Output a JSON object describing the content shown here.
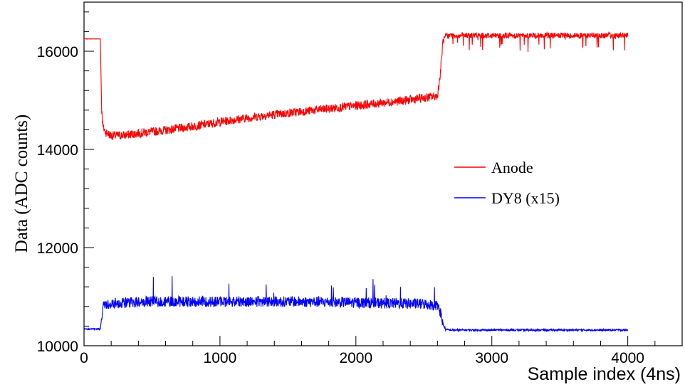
{
  "chart_data": {
    "type": "line",
    "xlabel": "Sample index (4ns)",
    "ylabel": "Data (ADC counts)",
    "xlim": [
      0,
      4400
    ],
    "ylim": [
      10000,
      17000
    ],
    "xticks": [
      0,
      1000,
      2000,
      3000,
      4000
    ],
    "xtick_labels": [
      "0",
      "1000",
      "2000",
      "3000",
      "4000"
    ],
    "yticks": [
      10000,
      12000,
      14000,
      16000
    ],
    "ytick_labels": [
      "10000",
      "12000",
      "14000",
      "16000"
    ],
    "grid": false,
    "legend_position": "right",
    "series": [
      {
        "name": "Anode",
        "color": "#ff0000",
        "x": [
          0,
          110,
          120,
          125,
          130,
          140,
          160,
          200,
          300,
          400,
          500,
          600,
          700,
          800,
          900,
          1000,
          1100,
          1200,
          1300,
          1400,
          1500,
          1600,
          1700,
          1800,
          1900,
          2000,
          2100,
          2200,
          2300,
          2400,
          2500,
          2580,
          2600,
          2620,
          2640,
          2660,
          2700,
          2800,
          3000,
          3200,
          3400,
          3600,
          3800,
          4000
        ],
        "y": [
          16250,
          16250,
          16250,
          15500,
          14800,
          14450,
          14350,
          14280,
          14290,
          14330,
          14360,
          14390,
          14430,
          14470,
          14510,
          14560,
          14600,
          14640,
          14680,
          14710,
          14740,
          14770,
          14800,
          14830,
          14860,
          14890,
          14920,
          14950,
          14980,
          15010,
          15050,
          15080,
          15100,
          15500,
          16200,
          16300,
          16320,
          16320,
          16320,
          16320,
          16320,
          16320,
          16320,
          16320
        ]
      },
      {
        "name": "DY8 (x15)",
        "color": "#0000ff",
        "x": [
          0,
          110,
          120,
          130,
          140,
          200,
          500,
          1000,
          1500,
          2000,
          2500,
          2600,
          2620,
          2640,
          2660,
          2700,
          3000,
          3500,
          4000
        ],
        "y": [
          10340,
          10340,
          10340,
          10600,
          10800,
          10870,
          10900,
          10900,
          10900,
          10880,
          10850,
          10820,
          10700,
          10450,
          10330,
          10320,
          10320,
          10320,
          10320
        ]
      }
    ]
  }
}
